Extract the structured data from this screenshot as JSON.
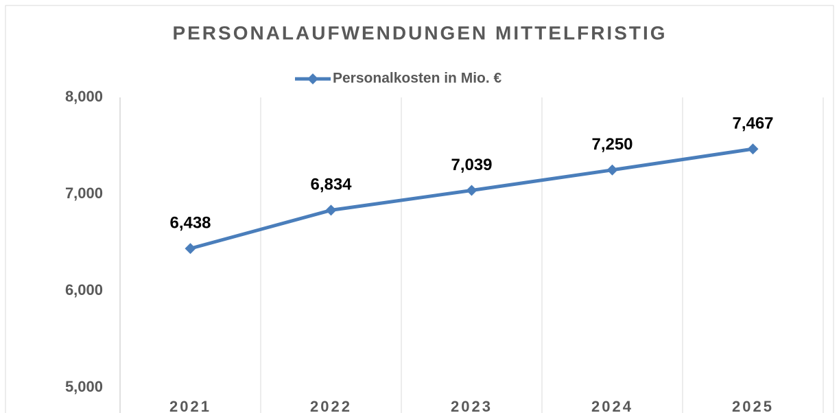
{
  "chart_data": {
    "type": "line",
    "title": "PERSONALAUFWENDUNGEN MITTELFRISTIG",
    "categories": [
      "2021",
      "2022",
      "2023",
      "2024",
      "2025"
    ],
    "series": [
      {
        "name": "Personalkosten in Mio. €",
        "color": "#4a7ebb",
        "values": [
          6438,
          6834,
          7039,
          7250,
          7467
        ],
        "value_labels": [
          "6,438",
          "6,834",
          "7,039",
          "7,250",
          "7,467"
        ]
      }
    ],
    "ylim": [
      5000,
      8000
    ],
    "yticks": [
      {
        "value": 5000,
        "label": "5,000"
      },
      {
        "value": 6000,
        "label": "6,000"
      },
      {
        "value": 7000,
        "label": "7,000"
      },
      {
        "value": 8000,
        "label": "8,000"
      }
    ],
    "legend": "top"
  }
}
